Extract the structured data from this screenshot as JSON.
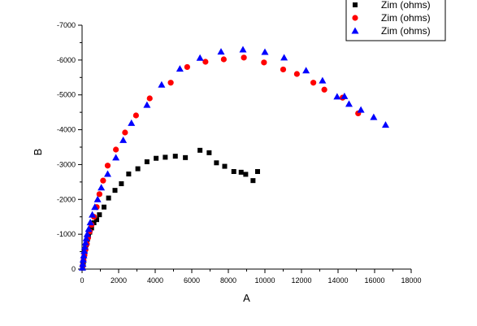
{
  "chart_data": {
    "type": "scatter",
    "xlabel": "A",
    "ylabel": "B",
    "xlim": [
      0,
      18000
    ],
    "ylim": [
      0,
      -7000
    ],
    "x_ticks": [
      0,
      2000,
      4000,
      6000,
      8000,
      10000,
      12000,
      14000,
      16000,
      18000
    ],
    "y_ticks": [
      0,
      -1000,
      -2000,
      -3000,
      -4000,
      -5000,
      -6000,
      -7000
    ],
    "grid": false,
    "legend_position": "top-right",
    "series": [
      {
        "name": "Zim (ohms)",
        "marker": "square",
        "color": "#000000",
        "points": [
          [
            30,
            -30
          ],
          [
            50,
            -120
          ],
          [
            70,
            -200
          ],
          [
            90,
            -280
          ],
          [
            110,
            -380
          ],
          [
            130,
            -460
          ],
          [
            160,
            -540
          ],
          [
            190,
            -620
          ],
          [
            220,
            -700
          ],
          [
            260,
            -780
          ],
          [
            300,
            -860
          ],
          [
            350,
            -960
          ],
          [
            420,
            -1060
          ],
          [
            520,
            -1180
          ],
          [
            650,
            -1330
          ],
          [
            800,
            -1420
          ],
          [
            950,
            -1560
          ],
          [
            1200,
            -1780
          ],
          [
            1450,
            -2040
          ],
          [
            1800,
            -2260
          ],
          [
            2150,
            -2450
          ],
          [
            2550,
            -2730
          ],
          [
            3050,
            -2880
          ],
          [
            3550,
            -3080
          ],
          [
            4050,
            -3180
          ],
          [
            4550,
            -3210
          ],
          [
            5100,
            -3240
          ],
          [
            5650,
            -3200
          ],
          [
            6450,
            -3410
          ],
          [
            6950,
            -3340
          ],
          [
            7350,
            -3050
          ],
          [
            7800,
            -2950
          ],
          [
            8300,
            -2800
          ],
          [
            8700,
            -2780
          ],
          [
            8950,
            -2720
          ],
          [
            9350,
            -2540
          ],
          [
            9600,
            -2800
          ]
        ]
      },
      {
        "name": "Zim (ohms)",
        "marker": "circle",
        "color": "#ff0000",
        "points": [
          [
            40,
            -100
          ],
          [
            80,
            -250
          ],
          [
            130,
            -400
          ],
          [
            190,
            -560
          ],
          [
            260,
            -720
          ],
          [
            330,
            -900
          ],
          [
            420,
            -1080
          ],
          [
            520,
            -1270
          ],
          [
            650,
            -1500
          ],
          [
            800,
            -1780
          ],
          [
            950,
            -2150
          ],
          [
            1150,
            -2540
          ],
          [
            1400,
            -2970
          ],
          [
            1850,
            -3430
          ],
          [
            2350,
            -3920
          ],
          [
            2950,
            -4410
          ],
          [
            3700,
            -4900
          ],
          [
            4850,
            -5350
          ],
          [
            5750,
            -5800
          ],
          [
            6750,
            -5950
          ],
          [
            7750,
            -6020
          ],
          [
            8850,
            -6070
          ],
          [
            9950,
            -5930
          ],
          [
            11000,
            -5730
          ],
          [
            11750,
            -5600
          ],
          [
            12650,
            -5350
          ],
          [
            13250,
            -5150
          ],
          [
            14250,
            -4920
          ],
          [
            15100,
            -4470
          ]
        ]
      },
      {
        "name": "Zim (ohms)",
        "marker": "triangle",
        "color": "#0000ff",
        "points": [
          [
            20,
            -40
          ],
          [
            40,
            -150
          ],
          [
            60,
            -270
          ],
          [
            90,
            -390
          ],
          [
            120,
            -520
          ],
          [
            150,
            -640
          ],
          [
            190,
            -760
          ],
          [
            230,
            -880
          ],
          [
            280,
            -1000
          ],
          [
            360,
            -1150
          ],
          [
            450,
            -1340
          ],
          [
            560,
            -1560
          ],
          [
            700,
            -1780
          ],
          [
            850,
            -2000
          ],
          [
            1050,
            -2340
          ],
          [
            1400,
            -2730
          ],
          [
            1850,
            -3200
          ],
          [
            2250,
            -3700
          ],
          [
            2700,
            -4190
          ],
          [
            3550,
            -4710
          ],
          [
            4350,
            -5290
          ],
          [
            5350,
            -5750
          ],
          [
            6450,
            -6060
          ],
          [
            7600,
            -6240
          ],
          [
            8800,
            -6300
          ],
          [
            10000,
            -6230
          ],
          [
            11050,
            -6070
          ],
          [
            12250,
            -5700
          ],
          [
            13150,
            -5410
          ],
          [
            13950,
            -4950
          ],
          [
            14350,
            -4960
          ],
          [
            14600,
            -4740
          ],
          [
            15250,
            -4570
          ],
          [
            15950,
            -4360
          ],
          [
            16600,
            -4140
          ]
        ]
      }
    ]
  }
}
